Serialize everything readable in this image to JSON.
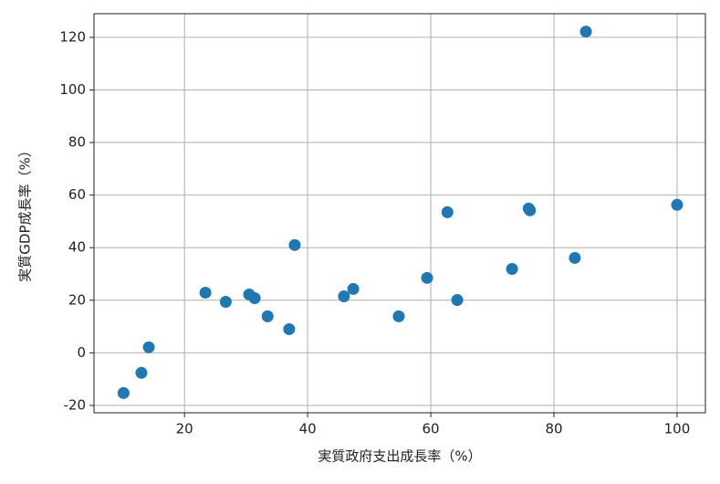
{
  "chart_data": {
    "type": "scatter",
    "xlabel": "実質政府支出成長率（%）",
    "ylabel": "実質GDP成長率（%）",
    "x": [
      10.1,
      13.0,
      14.2,
      23.4,
      26.7,
      30.5,
      31.4,
      33.5,
      37.0,
      37.9,
      45.9,
      47.4,
      54.8,
      59.4,
      62.7,
      64.3,
      73.2,
      75.9,
      76.1,
      83.4,
      85.2,
      100
    ],
    "values": [
      -15.3,
      -7.6,
      2.1,
      22.9,
      19.4,
      22.2,
      20.8,
      13.9,
      9.0,
      41.0,
      21.5,
      24.3,
      13.9,
      28.5,
      53.5,
      20.1,
      31.9,
      54.9,
      54.2,
      36.1,
      122.2,
      56.3
    ],
    "color": "#1f77b4",
    "xlim": [
      5.3,
      104.6
    ],
    "xticks": [
      20,
      40,
      60,
      80,
      100
    ],
    "ylim": [
      -22.8,
      129
    ],
    "yticks": [
      -20,
      0,
      20,
      40,
      60,
      80,
      100,
      120
    ],
    "grid": true
  }
}
